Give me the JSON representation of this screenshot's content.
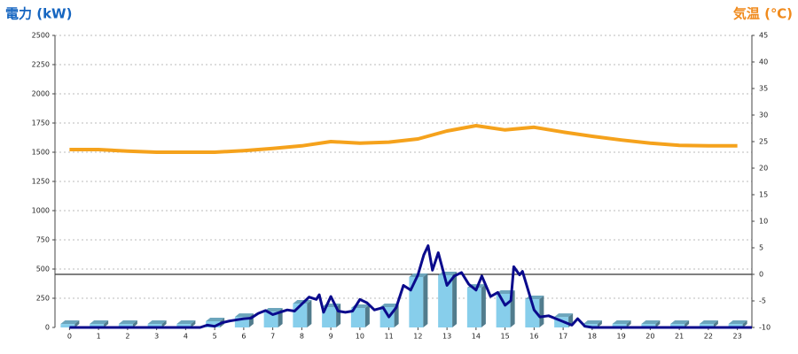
{
  "chart_data": {
    "type": "bar",
    "y_label": "電力 (kW)",
    "y2_label": "気温 (℃)",
    "y_label_color": "#1565c0",
    "y2_label_color": "#f08a1c",
    "categories": [
      "0",
      "1",
      "2",
      "3",
      "4",
      "5",
      "6",
      "7",
      "8",
      "9",
      "10",
      "11",
      "12",
      "13",
      "14",
      "15",
      "16",
      "17",
      "18",
      "19",
      "20",
      "21",
      "22",
      "23"
    ],
    "xlim": [
      -0.5,
      23.5
    ],
    "ylim": [
      0,
      2500
    ],
    "yticks": [
      0,
      250,
      500,
      750,
      1000,
      1250,
      1500,
      1750,
      2000,
      2250,
      2500
    ],
    "y2lim": [
      -10,
      45
    ],
    "y2ticks": [
      -10,
      -5,
      0,
      5,
      10,
      15,
      20,
      25,
      30,
      35,
      40,
      45
    ],
    "grid": true,
    "series": [
      {
        "type": "bar",
        "color": "#87ceeb",
        "values": [
          30,
          30,
          30,
          30,
          30,
          53,
          90,
          136,
          205,
          174,
          167,
          174,
          432,
          447,
          340,
          288,
          242,
          90,
          30,
          30,
          30,
          30,
          30,
          30
        ]
      },
      {
        "type": "line",
        "color": "#0a0a8c",
        "x": [
          0,
          4.5,
          4.75,
          5,
          5.25,
          5.5,
          5.75,
          6,
          6.25,
          6.5,
          6.75,
          7,
          7.25,
          7.5,
          7.75,
          8,
          8.25,
          8.5,
          8.6,
          8.75,
          9,
          9.25,
          9.5,
          9.75,
          10,
          10.25,
          10.5,
          10.8,
          11,
          11.25,
          11.5,
          11.75,
          12,
          12.2,
          12.35,
          12.5,
          12.7,
          13,
          13.25,
          13.5,
          13.75,
          14,
          14.2,
          14.5,
          14.75,
          15,
          15.2,
          15.3,
          15.5,
          15.6,
          16,
          16.2,
          16.5,
          17,
          17.3,
          17.5,
          17.75,
          18,
          23.5
        ],
        "values": [
          0,
          0,
          20,
          10,
          40,
          55,
          65,
          75,
          80,
          120,
          145,
          110,
          130,
          150,
          140,
          200,
          260,
          240,
          280,
          130,
          265,
          140,
          130,
          140,
          240,
          210,
          150,
          170,
          90,
          170,
          360,
          320,
          450,
          620,
          700,
          490,
          640,
          360,
          440,
          470,
          370,
          320,
          440,
          265,
          300,
          190,
          230,
          520,
          450,
          480,
          150,
          90,
          100,
          50,
          20,
          75,
          10,
          0,
          0
        ]
      },
      {
        "type": "line",
        "axis": "y2",
        "color": "#f5a21c",
        "values": [
          23.5,
          23.5,
          23.2,
          23,
          23,
          23,
          23.3,
          23.7,
          24.2,
          25,
          24.7,
          24.9,
          25.5,
          27,
          28,
          27.2,
          27.7,
          26.8,
          26,
          25.3,
          24.7,
          24.3,
          24.2,
          24.2
        ]
      }
    ]
  }
}
